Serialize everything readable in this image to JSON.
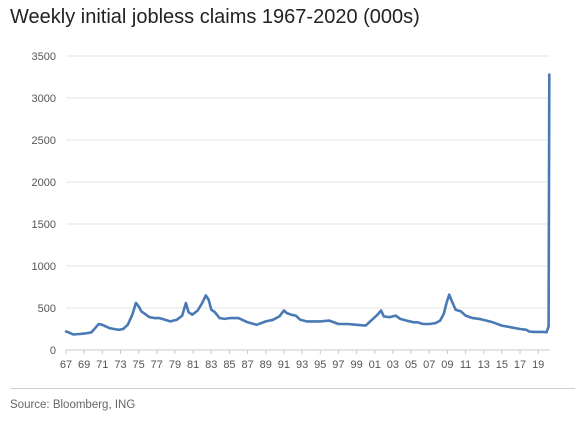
{
  "title": "Weekly initial jobless claims 1967-2020 (000s)",
  "source": "Source: Bloomberg, ING",
  "chart_data": {
    "type": "line",
    "title": "Weekly initial jobless claims 1967-2020 (000s)",
    "xlabel": "",
    "ylabel": "",
    "xlim": [
      1967,
      2020.3
    ],
    "ylim": [
      0,
      3500
    ],
    "yticks": [
      0,
      500,
      1000,
      1500,
      2000,
      2500,
      3000,
      3500
    ],
    "xtick_labels": [
      "67",
      "69",
      "71",
      "73",
      "75",
      "77",
      "79",
      "81",
      "83",
      "85",
      "87",
      "89",
      "91",
      "93",
      "95",
      "97",
      "99",
      "01",
      "03",
      "05",
      "07",
      "09",
      "11",
      "13",
      "15",
      "17",
      "19"
    ],
    "grid": "horizontal",
    "legend": "none",
    "line_color": "#4a7ab5",
    "series": [
      {
        "x": [
          1967.0,
          1967.3,
          1967.8,
          1968.5,
          1969.0,
          1969.8,
          1970.2,
          1970.6,
          1971.0,
          1971.3,
          1971.8,
          1972.3,
          1972.8,
          1973.3,
          1973.8,
          1974.3,
          1974.7,
          1975.0,
          1975.3,
          1975.7,
          1976.2,
          1976.8,
          1977.3,
          1977.9,
          1978.5,
          1979.2,
          1979.8,
          1980.2,
          1980.5,
          1980.9,
          1981.5,
          1982.0,
          1982.4,
          1982.7,
          1983.0,
          1983.4,
          1983.9,
          1984.5,
          1985.0,
          1986.0,
          1987.0,
          1988.0,
          1989.0,
          1989.8,
          1990.5,
          1991.0,
          1991.3,
          1991.8,
          1992.3,
          1992.8,
          1993.5,
          1994.3,
          1995.0,
          1996.0,
          1997.0,
          1998.0,
          1999.0,
          2000.0,
          2000.6,
          2001.3,
          2001.7,
          2002.0,
          2002.6,
          2003.3,
          2003.8,
          2004.5,
          2005.3,
          2005.7,
          2006.3,
          2007.0,
          2007.7,
          2008.2,
          2008.6,
          2008.9,
          2009.2,
          2009.5,
          2009.9,
          2010.5,
          2011.0,
          2011.8,
          2012.5,
          2013.3,
          2014.0,
          2015.0,
          2016.0,
          2017.0,
          2017.7,
          2018.0,
          2018.5,
          2019.0,
          2019.6,
          2019.9,
          2020.15,
          2020.22
        ],
        "y": [
          220,
          210,
          185,
          190,
          195,
          210,
          260,
          310,
          300,
          285,
          260,
          250,
          240,
          250,
          300,
          420,
          560,
          520,
          460,
          430,
          390,
          380,
          380,
          360,
          340,
          360,
          410,
          560,
          450,
          420,
          470,
          560,
          650,
          600,
          480,
          450,
          380,
          370,
          380,
          380,
          330,
          300,
          340,
          360,
          400,
          470,
          440,
          420,
          410,
          360,
          340,
          340,
          340,
          350,
          310,
          310,
          300,
          290,
          350,
          420,
          470,
          400,
          390,
          410,
          370,
          350,
          330,
          330,
          310,
          310,
          320,
          350,
          430,
          560,
          660,
          580,
          480,
          460,
          410,
          380,
          370,
          350,
          330,
          290,
          270,
          250,
          240,
          220,
          215,
          215,
          215,
          210,
          280,
          3280
        ]
      }
    ]
  }
}
